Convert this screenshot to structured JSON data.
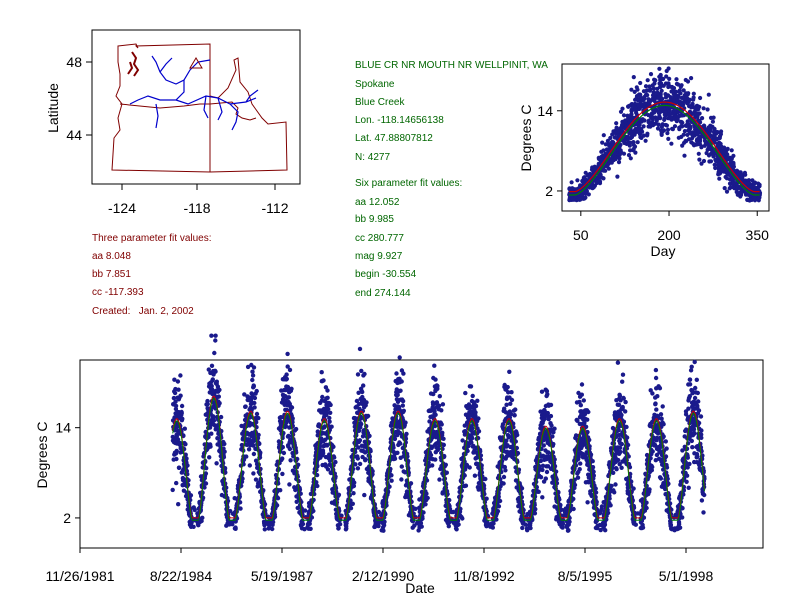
{
  "colors": {
    "map_border": "#800000",
    "rivers": "#0000cc",
    "site_marker": "#800000",
    "text_red": "#800000",
    "text_green": "#006600",
    "points": "#1a1a8c",
    "fit_red": "#cc0000",
    "fit_green": "#008000"
  },
  "map": {
    "xticks": [
      "-124",
      "-118",
      "-112"
    ],
    "yticks": [
      "48",
      "44"
    ],
    "ylabel": "Latitude"
  },
  "left_info": {
    "header": "Three parameter fit values:",
    "aa": "aa 8.048",
    "bb": "bb 7.851",
    "cc": "cc -117.393",
    "created": "Created:   Jan. 2, 2002"
  },
  "site_info": {
    "name": "BLUE CR NR MOUTH NR WELLPINIT, WA",
    "county": "Spokane",
    "stream": "Blue Creek",
    "lon": "Lon. -118.14656138",
    "lat": "Lat. 47.88807812",
    "n": "N: 4277",
    "six_header": "Six parameter fit values:",
    "aa": "aa 12.052",
    "bb": "bb 9.985",
    "cc": "cc 280.777",
    "mag": "mag 9.927",
    "begin": "begin -30.554",
    "end": "end 274.144"
  },
  "chart_data": [
    {
      "type": "scatter",
      "id": "seasonal",
      "xlabel": "Day",
      "ylabel": "Degrees C",
      "xticks": [
        50,
        200,
        350
      ],
      "yticks": [
        2,
        14
      ],
      "xlim": [
        18,
        370
      ],
      "ylim": [
        -1,
        21
      ],
      "points_day_range": [
        30,
        355
      ],
      "fit_three_param": {
        "aa": 8.048,
        "bb": 7.851,
        "cc": -117.393
      },
      "fit_six_param": {
        "aa": 12.052,
        "bb": 9.985,
        "cc": 280.777,
        "mag": 9.927,
        "begin": -30.554,
        "end": 274.144
      },
      "n": 4277
    },
    {
      "type": "scatter",
      "id": "timeseries",
      "xlabel": "Date",
      "ylabel": "Degrees C",
      "xtick_labels": [
        "11/26/1981",
        "8/22/1984",
        "5/19/1987",
        "2/12/1990",
        "11/8/1992",
        "8/5/1995",
        "5/1/1998"
      ],
      "yticks": [
        2,
        14
      ],
      "ylim": [
        -2,
        23
      ],
      "data_start": "6/1/1984",
      "data_end": "10/31/1998",
      "summer_peaks": [
        17,
        20,
        18,
        18,
        17,
        18,
        18,
        17,
        17,
        17,
        16,
        16,
        17,
        17,
        18
      ]
    }
  ]
}
